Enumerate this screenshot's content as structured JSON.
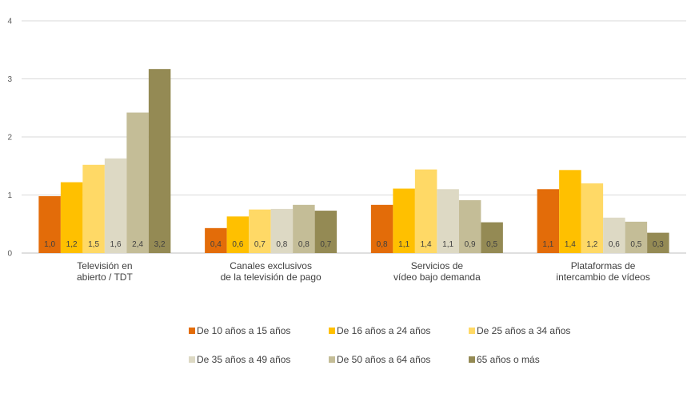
{
  "chart_data": {
    "type": "bar",
    "categories": [
      [
        "Televisión en",
        "abierto / TDT"
      ],
      [
        "Canales exclusivos",
        "de la televisión de pago"
      ],
      [
        "Servicios de",
        "vídeo bajo demanda"
      ],
      [
        "Plataformas de",
        "intercambio de vídeos"
      ]
    ],
    "ylim": [
      0,
      4
    ],
    "yticks": [
      "0",
      "1",
      "2",
      "3",
      "4"
    ],
    "grid": true,
    "legend_position": "bottom",
    "series": [
      {
        "name": "De 10 años a 15 años",
        "color": "#E36C09",
        "values": [
          0.98,
          0.43,
          0.83,
          1.1
        ],
        "labels": [
          "1,0",
          "0,4",
          "0,8",
          "1,1"
        ]
      },
      {
        "name": "De 16 años a 24 años",
        "color": "#FFC000",
        "values": [
          1.22,
          0.63,
          1.11,
          1.43
        ],
        "labels": [
          "1,2",
          "0,6",
          "1,1",
          "1,4"
        ]
      },
      {
        "name": "De 25 años a 34 años",
        "color": "#FFD966",
        "values": [
          1.52,
          0.75,
          1.44,
          1.2
        ],
        "labels": [
          "1,5",
          "0,7",
          "1,4",
          "1,2"
        ]
      },
      {
        "name": "De 35 años a 49 años",
        "color": "#DDD9C4",
        "values": [
          1.63,
          0.76,
          1.1,
          0.61
        ],
        "labels": [
          "1,6",
          "0,8",
          "1,1",
          "0,6"
        ]
      },
      {
        "name": "De 50 años a 64 años",
        "color": "#C4BD97",
        "values": [
          2.42,
          0.83,
          0.91,
          0.54
        ],
        "labels": [
          "2,4",
          "0,8",
          "0,9",
          "0,5"
        ]
      },
      {
        "name": "65 años o más",
        "color": "#948A54",
        "values": [
          3.17,
          0.73,
          0.53,
          0.35
        ],
        "labels": [
          "3,2",
          "0,7",
          "0,5",
          "0,3"
        ]
      }
    ]
  }
}
